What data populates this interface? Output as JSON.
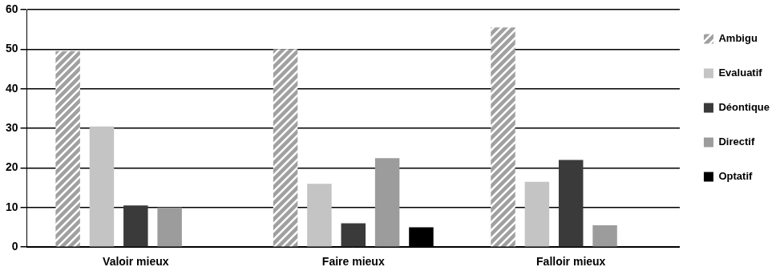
{
  "chart_data": {
    "type": "bar",
    "categories": [
      "Valoir mieux",
      "Faire mieux",
      "Falloir mieux"
    ],
    "series": [
      {
        "name": "Ambigu",
        "color": "#a0a0a0",
        "values": [
          49.5,
          50,
          55.5
        ]
      },
      {
        "name": "Evaluatif",
        "color": "#c4c4c4",
        "values": [
          30.5,
          16,
          16.5
        ]
      },
      {
        "name": "Déontique",
        "color": "#3a3a3a",
        "values": [
          10.5,
          6,
          22
        ]
      },
      {
        "name": "Directif",
        "color": "#9c9c9c",
        "values": [
          10,
          22.5,
          5.5
        ]
      },
      {
        "name": "Optatif",
        "color": "#000000",
        "values": [
          0,
          5,
          0
        ]
      }
    ],
    "ylim": [
      0,
      60
    ],
    "yticks": [
      0,
      10,
      20,
      30,
      40,
      50,
      60
    ],
    "grid": true,
    "legend": "right"
  }
}
